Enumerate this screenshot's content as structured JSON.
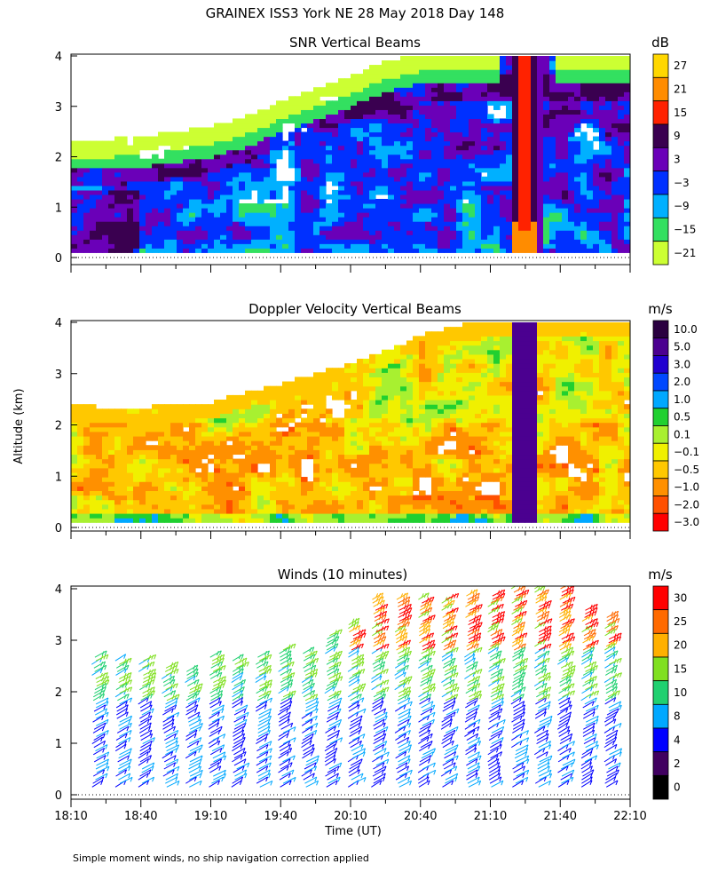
{
  "title": "GRAINEX ISS3 York NE  28 May 2018 Day 148",
  "footnote": "Simple moment winds, no ship navigation correction applied",
  "chart_data": [
    {
      "type": "heatmap",
      "title": "SNR Vertical Beams",
      "units": "dB",
      "ylabel": "",
      "ylim": [
        0,
        4
      ],
      "yticks": [
        "0",
        "1",
        "2",
        "3",
        "4"
      ],
      "colorbar_labels": [
        "27",
        "21",
        "15",
        "9",
        "3",
        "−3",
        "−9",
        "−15",
        "−21"
      ],
      "colorbar_colors": [
        "#ffd700",
        "#ff8c00",
        "#ff2200",
        "#3a0050",
        "#6a00b8",
        "#0030ff",
        "#00b0ff",
        "#33e060",
        "#ccff33"
      ],
      "data_ceiling_km": [
        2.3,
        2.3,
        2.35,
        2.45,
        2.55,
        2.75,
        3.05,
        3.3,
        3.55,
        3.85,
        4.0,
        4.0,
        4.0,
        4.0,
        4.0,
        4.0,
        4.0
      ],
      "notes": "Dense vertical SNR field; strong echo band (9–27 dB) near 21:25 UT from surface to 4 km; white = no data"
    },
    {
      "type": "heatmap",
      "title": "Doppler Velocity Vertical Beams",
      "units": "m/s",
      "ylabel": "Altitude (km)",
      "ylim": [
        0,
        4
      ],
      "yticks": [
        "0",
        "1",
        "2",
        "3",
        "4"
      ],
      "colorbar_labels": [
        "10.0",
        "5.0",
        "3.0",
        "2.0",
        "1.0",
        "0.5",
        "0.1",
        "−0.1",
        "−0.5",
        "−1.0",
        "−2.0",
        "−3.0"
      ],
      "colorbar_colors": [
        "#2a0040",
        "#4b0090",
        "#2000d0",
        "#0048ff",
        "#00a8ff",
        "#20d030",
        "#a8f030",
        "#f0f000",
        "#ffc800",
        "#ff9000",
        "#ff5000",
        "#ff0000"
      ],
      "data_ceiling_km": [
        2.35,
        2.3,
        2.3,
        2.35,
        2.4,
        2.6,
        2.75,
        2.95,
        3.15,
        3.4,
        3.7,
        3.9,
        4.0,
        4.0,
        4.0,
        4.0,
        4.0
      ],
      "notes": "Mostly weak negative (downward) velocities; strong positive band (~10 m/s) near 21:25 UT"
    },
    {
      "type": "wind_barbs",
      "title": "Winds (10 minutes)",
      "units": "m/s",
      "ylabel": "",
      "ylim": [
        0,
        4
      ],
      "yticks": [
        "0",
        "1",
        "2",
        "3",
        "4"
      ],
      "colorbar_labels": [
        "30",
        "25",
        "20",
        "15",
        "10",
        "8",
        "4",
        "2",
        "0"
      ],
      "colorbar_colors": [
        "#ff0000",
        "#ff6a00",
        "#ffb000",
        "#80e020",
        "#20d070",
        "#00a8ff",
        "#0000ff",
        "#400060",
        "#000000"
      ],
      "profile_times": [
        "18:20",
        "18:30",
        "18:40",
        "18:50",
        "19:00",
        "19:10",
        "19:20",
        "19:30",
        "19:40",
        "19:50",
        "20:00",
        "20:10",
        "20:20",
        "20:30",
        "20:40",
        "20:50",
        "21:00",
        "21:10",
        "21:20",
        "21:30",
        "21:40",
        "21:50",
        "22:00"
      ],
      "profile_top_km": [
        2.7,
        2.6,
        2.6,
        2.5,
        2.4,
        2.7,
        2.6,
        2.7,
        2.85,
        2.8,
        3.1,
        3.3,
        3.8,
        3.8,
        3.8,
        3.8,
        3.9,
        3.9,
        4.0,
        4.0,
        4.0,
        3.6,
        3.5
      ],
      "notes": "Mostly 4–10 m/s winds below 3 km; stronger 15–30 m/s winds above 3 km after 20:10"
    }
  ],
  "xaxis": {
    "ticks": [
      "18:10",
      "18:40",
      "19:10",
      "19:40",
      "20:10",
      "20:40",
      "21:10",
      "21:40",
      "22:10"
    ],
    "label": "Time (UT)",
    "range_minutes": [
      0,
      240
    ],
    "tick_step_minutes": 30
  }
}
